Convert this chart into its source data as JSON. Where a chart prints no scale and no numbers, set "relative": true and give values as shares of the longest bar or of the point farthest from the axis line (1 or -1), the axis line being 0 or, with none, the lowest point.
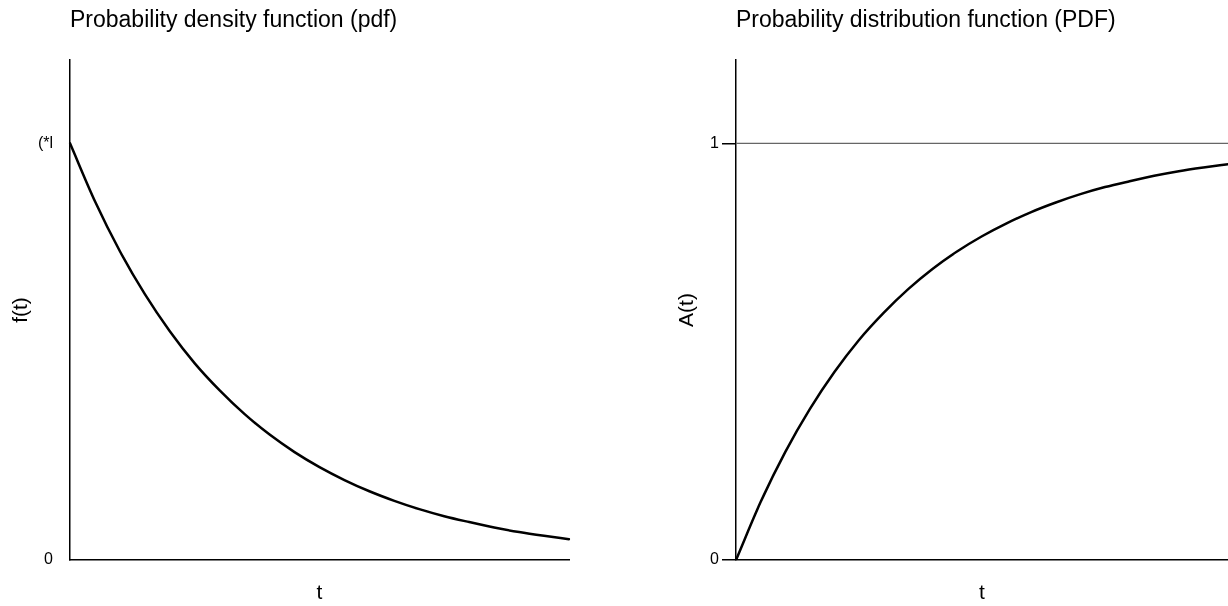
{
  "chart_data": [
    {
      "type": "line",
      "title": "Probability density function (pdf)",
      "xlabel": "t",
      "ylabel": "f(t)",
      "categories": [
        null,
        null,
        null,
        null,
        null,
        null,
        null,
        null,
        null,
        null,
        null,
        null,
        null,
        null,
        null,
        null,
        null,
        null,
        null,
        null,
        null
      ],
      "values": [
        1.0,
        0.861,
        0.741,
        0.638,
        0.549,
        0.472,
        0.407,
        0.35,
        0.301,
        0.259,
        0.223,
        0.192,
        0.165,
        0.142,
        0.122,
        0.105,
        0.091,
        0.078,
        0.067,
        0.058,
        0.05
      ],
      "color": "#000000",
      "relative": true,
      "annotations": [
        "(*l",
        "0"
      ],
      "grid": false,
      "legend": false,
      "tick_labels": "y"
    },
    {
      "type": "line",
      "title": "Probability distribution function (PDF)",
      "xlabel": "t",
      "ylabel": "A(t)",
      "categories": [
        null,
        null,
        null,
        null,
        null,
        null,
        null,
        null,
        null,
        null,
        null,
        null,
        null,
        null,
        null,
        null,
        null,
        null,
        null,
        null,
        null
      ],
      "values": [
        0,
        0.139,
        0.259,
        0.362,
        0.451,
        0.528,
        0.593,
        0.65,
        0.699,
        0.741,
        0.777,
        0.808,
        0.835,
        0.858,
        0.878,
        0.895,
        0.909,
        0.922,
        0.933,
        0.942,
        0.95
      ],
      "color": "#000000",
      "ylim": [
        0,
        1.2
      ],
      "yticks": [
        0,
        1
      ],
      "ref_lines": [
        {
          "axis": "y",
          "value": 1,
          "color": "#666666"
        }
      ],
      "grid": false,
      "legend": false,
      "tick_labels": "y"
    }
  ]
}
